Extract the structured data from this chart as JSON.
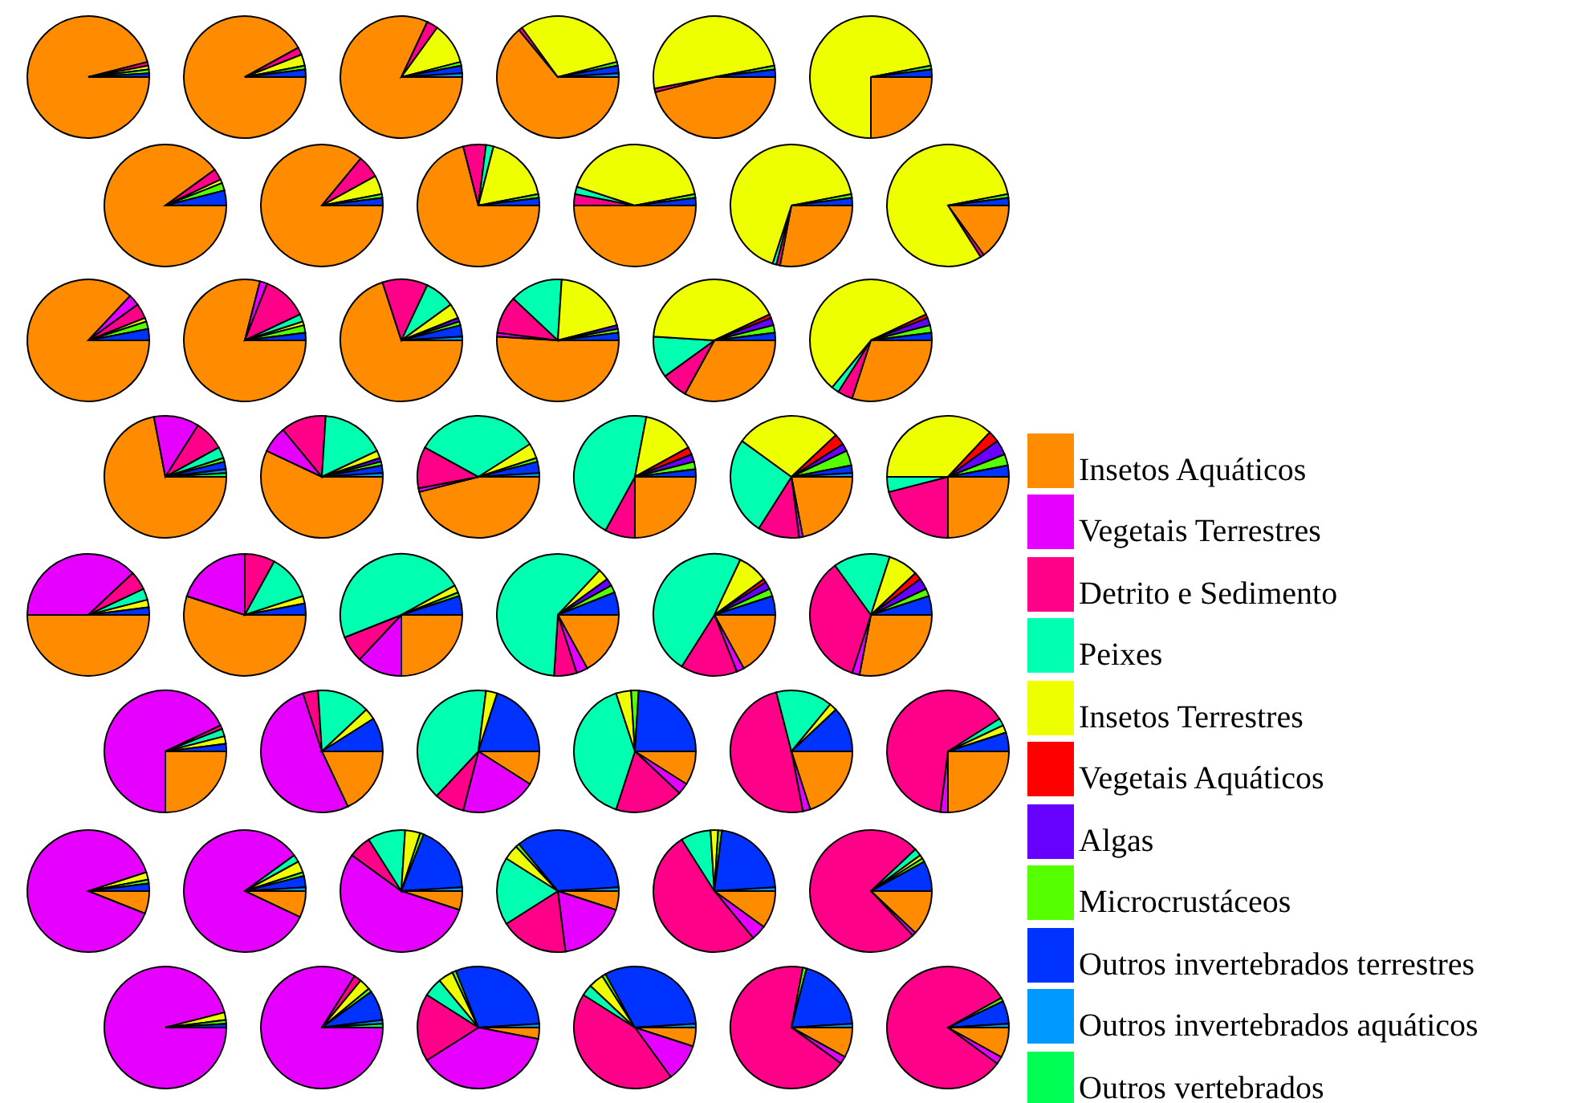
{
  "chart_data": {
    "type": "pie",
    "legend": "right",
    "categories": [
      "Insetos Aquáticos",
      "Vegetais Terrestres",
      "Detrito e Sedimento",
      "Peixes",
      "Insetos Terrestres",
      "Vegetais Aquáticos",
      "Algas",
      "Microcrustáceos",
      "Outros invertebrados terrestres",
      "Outros invertebrados aquáticos",
      "Outros vertebrados"
    ],
    "colors": [
      "#ff8c00",
      "#e600ff",
      "#ff0088",
      "#00ffb0",
      "#eeff00",
      "#ff0000",
      "#6600ff",
      "#55ff00",
      "#0033ff",
      "#0099ff",
      "#00ff55"
    ],
    "series": [
      {
        "values": [
          96,
          0,
          1,
          0,
          1,
          0,
          0,
          1,
          1,
          0,
          0
        ]
      },
      {
        "values": [
          92,
          0,
          2,
          0,
          3,
          0,
          0,
          1,
          2,
          0,
          0
        ]
      },
      {
        "values": [
          82,
          0,
          3,
          0,
          11,
          0,
          0,
          1,
          2,
          1,
          0
        ]
      },
      {
        "values": [
          64,
          0,
          1,
          0,
          31,
          0,
          0,
          1,
          2,
          1,
          0
        ]
      },
      {
        "values": [
          46,
          0,
          1,
          0,
          50,
          0,
          0,
          1,
          2,
          0,
          0
        ]
      },
      {
        "values": [
          25,
          0,
          0,
          0,
          72,
          0,
          0,
          1,
          2,
          0,
          0
        ]
      },
      {
        "values": [
          90,
          0,
          3,
          0,
          1,
          0,
          0,
          2,
          4,
          0,
          0
        ]
      },
      {
        "values": [
          86,
          0,
          6,
          0,
          5,
          0,
          0,
          1,
          2,
          0,
          0
        ]
      },
      {
        "values": [
          71,
          0,
          6,
          2,
          18,
          0,
          0,
          1,
          2,
          0,
          0
        ]
      },
      {
        "values": [
          50,
          0,
          3,
          2,
          42,
          0,
          0,
          1,
          2,
          0,
          0
        ]
      },
      {
        "values": [
          28,
          0,
          1,
          1,
          67,
          0,
          0,
          1,
          2,
          0,
          0
        ]
      },
      {
        "values": [
          15,
          0,
          1,
          0,
          81,
          0,
          0,
          1,
          2,
          0,
          0
        ]
      },
      {
        "values": [
          87,
          3,
          4,
          0,
          1,
          0,
          0,
          2,
          3,
          0,
          0
        ]
      },
      {
        "values": [
          79,
          2,
          12,
          2,
          1,
          0,
          0,
          2,
          2,
          0,
          0
        ]
      },
      {
        "values": [
          70,
          0,
          12,
          8,
          4,
          0,
          1,
          1,
          3,
          1,
          0
        ]
      },
      {
        "values": [
          51,
          1,
          10,
          14,
          20,
          0,
          1,
          1,
          2,
          0,
          0
        ]
      },
      {
        "values": [
          33,
          0,
          7,
          11,
          42,
          1,
          2,
          2,
          2,
          0,
          0
        ]
      },
      {
        "values": [
          30,
          0,
          4,
          2,
          57,
          1,
          2,
          2,
          2,
          0,
          0
        ]
      },
      {
        "values": [
          72,
          12,
          8,
          3,
          0,
          0,
          0,
          1,
          2,
          1,
          1
        ]
      },
      {
        "values": [
          57,
          7,
          12,
          17,
          2,
          0,
          1,
          1,
          2,
          1,
          0
        ]
      },
      {
        "values": [
          46,
          1,
          11,
          33,
          4,
          0,
          0,
          1,
          3,
          1,
          0
        ]
      },
      {
        "values": [
          25,
          0,
          8,
          45,
          14,
          2,
          2,
          2,
          2,
          0,
          0
        ]
      },
      {
        "values": [
          22,
          1,
          11,
          26,
          28,
          3,
          2,
          4,
          2,
          1,
          0
        ]
      },
      {
        "values": [
          25,
          0,
          21,
          4,
          37,
          3,
          4,
          3,
          3,
          0,
          0
        ]
      },
      {
        "values": [
          50,
          38,
          5,
          3,
          2,
          0,
          0,
          0,
          2,
          0,
          0
        ]
      },
      {
        "values": [
          55,
          20,
          8,
          12,
          2,
          0,
          0,
          0,
          3,
          0,
          0
        ]
      },
      {
        "values": [
          25,
          12,
          7,
          48,
          2,
          0,
          0,
          1,
          5,
          0,
          0
        ]
      },
      {
        "values": [
          17,
          3,
          6,
          61,
          3,
          0,
          2,
          2,
          6,
          0,
          0
        ]
      },
      {
        "values": [
          17,
          2,
          15,
          48,
          8,
          1,
          2,
          2,
          5,
          0,
          0
        ]
      },
      {
        "values": [
          28,
          2,
          35,
          15,
          8,
          2,
          3,
          2,
          5,
          0,
          0
        ]
      },
      {
        "values": [
          25,
          68,
          1,
          2,
          2,
          0,
          0,
          0,
          2,
          0,
          0
        ]
      },
      {
        "values": [
          18,
          52,
          4,
          14,
          3,
          0,
          0,
          0,
          9,
          0,
          0
        ]
      },
      {
        "values": [
          9,
          20,
          8,
          40,
          3,
          0,
          0,
          0,
          20,
          0,
          0
        ]
      },
      {
        "values": [
          9,
          3,
          18,
          40,
          4,
          0,
          0,
          2,
          24,
          0,
          0
        ]
      },
      {
        "values": [
          20,
          2,
          49,
          15,
          2,
          0,
          0,
          0,
          12,
          0,
          0
        ]
      },
      {
        "values": [
          25,
          2,
          64,
          2,
          2,
          0,
          0,
          0,
          5,
          0,
          0
        ]
      },
      {
        "values": [
          6,
          89,
          0,
          0,
          2,
          0,
          0,
          1,
          2,
          0,
          0
        ]
      },
      {
        "values": [
          7,
          83,
          0,
          2,
          3,
          0,
          0,
          1,
          3,
          1,
          0
        ]
      },
      {
        "values": [
          5,
          55,
          6,
          10,
          4,
          0,
          0,
          1,
          18,
          1,
          0
        ]
      },
      {
        "values": [
          5,
          18,
          18,
          18,
          4,
          0,
          0,
          1,
          35,
          1,
          0
        ]
      },
      {
        "values": [
          10,
          4,
          52,
          8,
          2,
          0,
          0,
          1,
          22,
          1,
          0
        ]
      },
      {
        "values": [
          12,
          1,
          75,
          2,
          1,
          0,
          0,
          1,
          8,
          0,
          0
        ]
      },
      {
        "values": [
          null,
          96,
          0,
          0,
          2,
          0,
          0,
          1,
          1,
          0,
          0
        ]
      },
      {
        "values": [
          null,
          84,
          2,
          0,
          3,
          0,
          0,
          1,
          8,
          1,
          1
        ]
      },
      {
        "values": [
          3,
          38,
          18,
          5,
          4,
          0,
          0,
          1,
          30,
          1,
          0
        ]
      },
      {
        "values": [
          5,
          10,
          44,
          3,
          4,
          0,
          0,
          1,
          32,
          1,
          0
        ]
      },
      {
        "values": [
          8,
          2,
          68,
          0,
          0,
          0,
          0,
          1,
          20,
          1,
          0
        ]
      },
      {
        "values": [
          8,
          2,
          81,
          0,
          0,
          0,
          0,
          1,
          6,
          1,
          0
        ]
      }
    ]
  }
}
